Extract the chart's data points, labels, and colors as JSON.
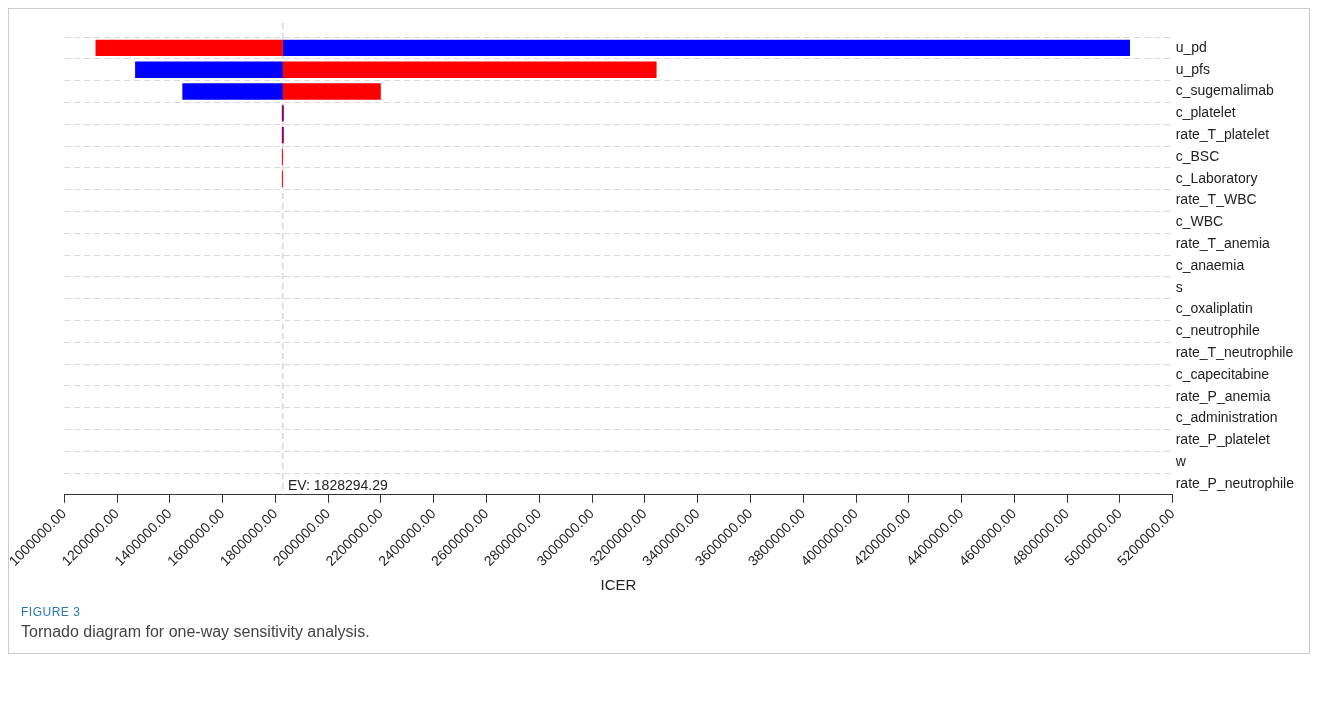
{
  "chart_data": {
    "type": "bar",
    "orientation": "horizontal",
    "xlabel": "ICER",
    "categories": [
      "u_pd",
      "u_pfs",
      "c_sugemalimab",
      "c_platelet",
      "rate_T_platelet",
      "c_BSC",
      "c_Laboratory",
      "rate_T_WBC",
      "c_WBC",
      "rate_T_anemia",
      "c_anaemia",
      "s",
      "c_oxaliplatin",
      "c_neutrophile",
      "rate_T_neutrophile",
      "c_capecitabine",
      "rate_P_anemia",
      "c_administration",
      "rate_P_platelet",
      "w",
      "rate_P_neutrophile"
    ],
    "series": [
      {
        "color": "#ff0000",
        "base": [
          1828294.29,
          1828294.29,
          1828294.29,
          1828294.29,
          1828294.29,
          1828294.29,
          1828294.29,
          null,
          null,
          null,
          null,
          null,
          null,
          null,
          null,
          null,
          null,
          null,
          null,
          null,
          null
        ],
        "values": [
          -710000,
          1416000,
          371000,
          4000,
          4000,
          -4000,
          -4000,
          null,
          null,
          null,
          null,
          null,
          null,
          null,
          null,
          null,
          null,
          null,
          null,
          null,
          null
        ]
      },
      {
        "color": "#0000ff",
        "base": [
          1828294.29,
          1828294.29,
          1828294.29,
          1828294.29,
          1828294.29,
          null,
          null,
          null,
          null,
          null,
          null,
          null,
          null,
          null,
          null,
          null,
          null,
          null,
          null,
          null,
          null
        ],
        "values": [
          3210000,
          -560000,
          -381000,
          -4000,
          -4000,
          null,
          null,
          null,
          null,
          null,
          null,
          null,
          null,
          null,
          null,
          null,
          null,
          null,
          null,
          null,
          null
        ]
      }
    ],
    "xlim": [
      1000000,
      5200000
    ],
    "xticks": [
      {
        "value": 1000000,
        "label": "1000000.00"
      },
      {
        "value": 1200000,
        "label": "1200000.00"
      },
      {
        "value": 1400000,
        "label": "1400000.00"
      },
      {
        "value": 1600000,
        "label": "1600000.00"
      },
      {
        "value": 1800000,
        "label": "1800000.00"
      },
      {
        "value": 2000000,
        "label": "2000000.00"
      },
      {
        "value": 2200000,
        "label": "2200000.00"
      },
      {
        "value": 2400000,
        "label": "2400000.00"
      },
      {
        "value": 2600000,
        "label": "2600000.00"
      },
      {
        "value": 2800000,
        "label": "2800000.00"
      },
      {
        "value": 3000000,
        "label": "3000000.00"
      },
      {
        "value": 3200000,
        "label": "3200000.00"
      },
      {
        "value": 3400000,
        "label": "3400000.00"
      },
      {
        "value": 3600000,
        "label": "3600000.00"
      },
      {
        "value": 3800000,
        "label": "3800000.00"
      },
      {
        "value": 4000000,
        "label": "4000000.00"
      },
      {
        "value": 4200000,
        "label": "4200000.00"
      },
      {
        "value": 4400000,
        "label": "4400000.00"
      },
      {
        "value": 4600000,
        "label": "4600000.00"
      },
      {
        "value": 4800000,
        "label": "4800000.00"
      },
      {
        "value": 5000000,
        "label": "5000000.00"
      },
      {
        "value": 5200000,
        "label": "5200000.00"
      }
    ],
    "ref_lines": [
      {
        "axis": "x",
        "value": 1828294.29,
        "label": "EV: 1828294.29",
        "color": "#c0c0c0",
        "line_style": "dashed"
      }
    ],
    "grid": "y",
    "legend": false,
    "annotations": [
      "FIGURE 3",
      "Tornado diagram for one-way sensitivity analysis."
    ]
  }
}
